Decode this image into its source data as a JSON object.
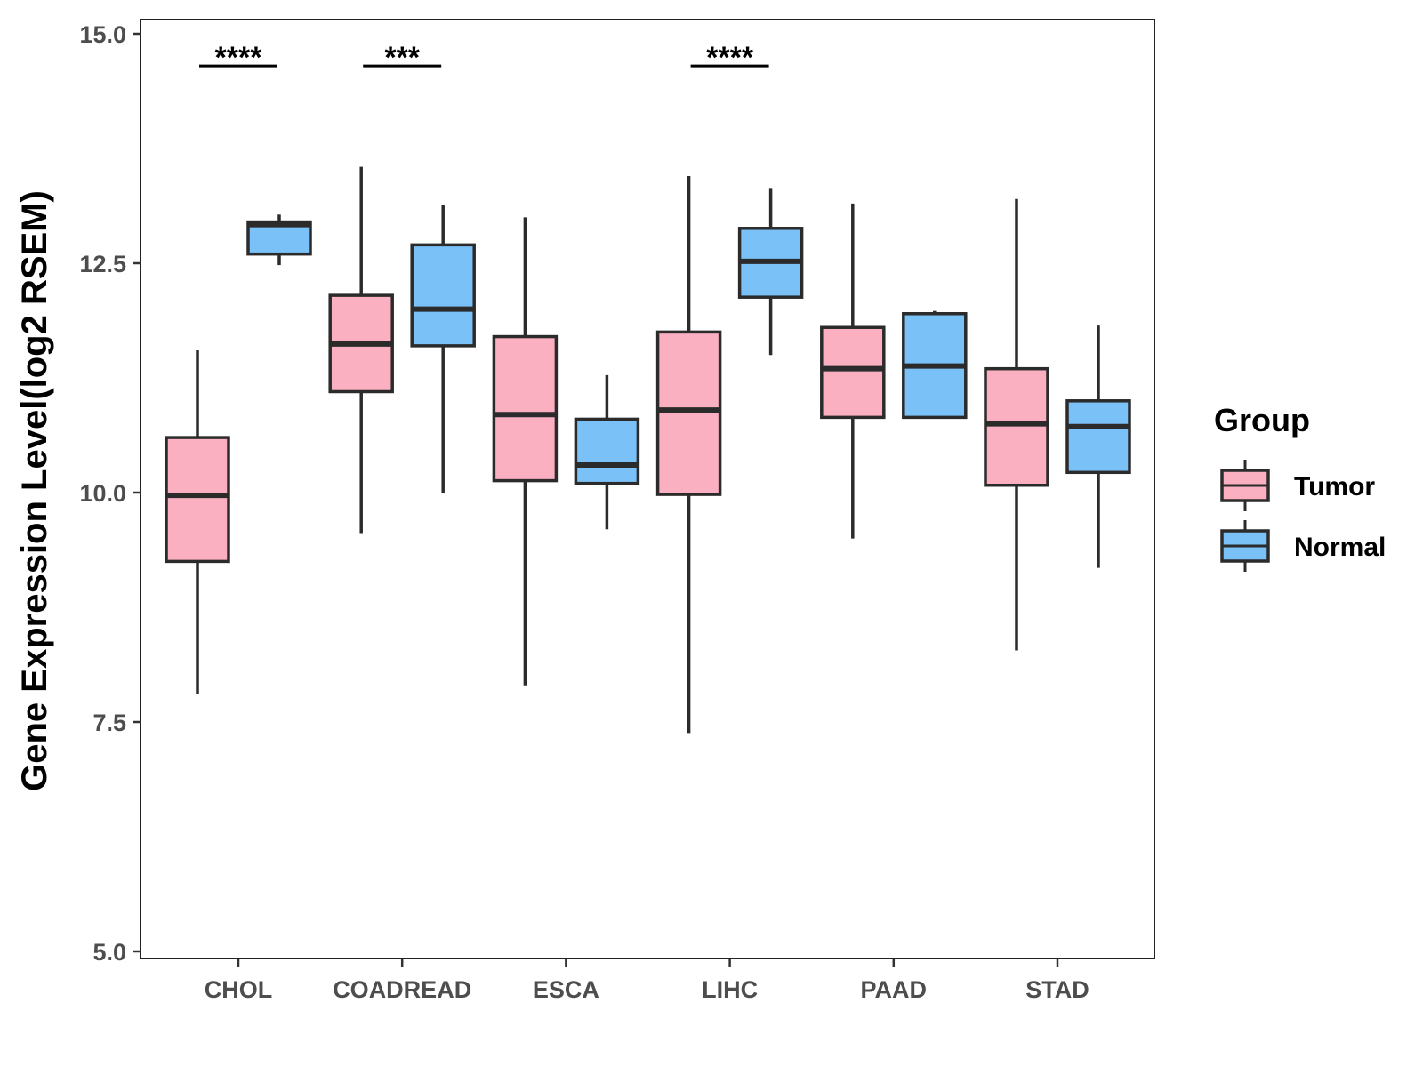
{
  "chart_data": {
    "type": "boxplot",
    "title": "",
    "xlabel": "",
    "ylabel": "Gene Expression Level(log2 RSEM)",
    "ylim": [
      5.0,
      15.0
    ],
    "yticks": [
      "5.0",
      "7.5",
      "10.0",
      "12.5",
      "15.0"
    ],
    "categories": [
      "CHOL",
      "COADREAD",
      "ESCA",
      "LIHC",
      "PAAD",
      "STAD"
    ],
    "series": [
      {
        "name": "Tumor",
        "color": "#FBB0C2",
        "boxes": [
          {
            "min": 7.8,
            "q1": 9.25,
            "median": 9.97,
            "q3": 10.6,
            "max": 11.55
          },
          {
            "min": 9.55,
            "q1": 11.1,
            "median": 11.62,
            "q3": 12.15,
            "max": 13.55
          },
          {
            "min": 7.9,
            "q1": 10.13,
            "median": 10.85,
            "q3": 11.7,
            "max": 13.0
          },
          {
            "min": 7.38,
            "q1": 9.98,
            "median": 10.9,
            "q3": 11.75,
            "max": 13.45
          },
          {
            "min": 9.5,
            "q1": 10.82,
            "median": 11.35,
            "q3": 11.8,
            "max": 13.15
          },
          {
            "min": 8.28,
            "q1": 10.08,
            "median": 10.75,
            "q3": 11.35,
            "max": 13.2
          }
        ]
      },
      {
        "name": "Normal",
        "color": "#79C1F7",
        "boxes": [
          {
            "min": 12.48,
            "q1": 12.6,
            "median": 12.92,
            "q3": 12.95,
            "max": 13.03
          },
          {
            "min": 10.0,
            "q1": 11.6,
            "median": 12.0,
            "q3": 12.7,
            "max": 13.13
          },
          {
            "min": 9.6,
            "q1": 10.1,
            "median": 10.3,
            "q3": 10.8,
            "max": 11.28
          },
          {
            "min": 11.5,
            "q1": 12.13,
            "median": 12.52,
            "q3": 12.88,
            "max": 13.32
          },
          {
            "min": 10.82,
            "q1": 10.82,
            "median": 11.38,
            "q3": 11.95,
            "max": 11.98
          },
          {
            "min": 9.18,
            "q1": 10.22,
            "median": 10.72,
            "q3": 11.0,
            "max": 11.82
          }
        ]
      }
    ],
    "significance": [
      {
        "category": "CHOL",
        "label": "****",
        "y": 14.65
      },
      {
        "category": "COADREAD",
        "label": "***",
        "y": 14.65
      },
      {
        "category": "LIHC",
        "label": "****",
        "y": 14.65
      }
    ],
    "legend": {
      "title": "Group",
      "position": "right"
    },
    "grid": false
  }
}
